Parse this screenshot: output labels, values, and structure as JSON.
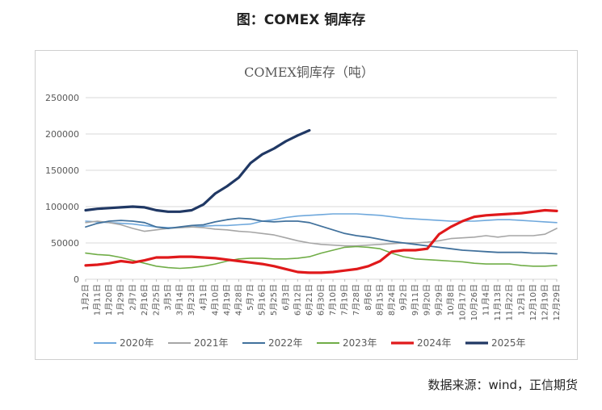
{
  "figure_title": "图：COMEX 铜库存",
  "source_note": "数据来源：wind，正信期货",
  "chart_data": {
    "type": "line",
    "title": "COMEX铜库存（吨）",
    "ylim": [
      0,
      250000
    ],
    "yticks": [
      0,
      50000,
      100000,
      150000,
      200000,
      250000
    ],
    "categories": [
      "1月2日",
      "1月11日",
      "1月20日",
      "1月29日",
      "2月7日",
      "2月16日",
      "2月25日",
      "3月5日",
      "3月14日",
      "3月23日",
      "4月1日",
      "4月10日",
      "4月19日",
      "4月28日",
      "5月7日",
      "5月16日",
      "5月25日",
      "6月3日",
      "6月12日",
      "6月21日",
      "6月30日",
      "7月10日",
      "7月19日",
      "7月28日",
      "8月6日",
      "8月15日",
      "8月24日",
      "9月2日",
      "9月11日",
      "9月20日",
      "9月29日",
      "10月8日",
      "10月17日",
      "10月26日",
      "11月4日",
      "11月13日",
      "11月22日",
      "12月1日",
      "12月10日",
      "12月19日",
      "12月29日"
    ],
    "legend_position": "bottom",
    "grid": true,
    "series": [
      {
        "name": "2020年",
        "color": "#6fa8dc",
        "width": 1.6,
        "values": [
          80000,
          79000,
          78000,
          77000,
          76000,
          74000,
          72000,
          71000,
          71000,
          72000,
          73000,
          74000,
          74000,
          75000,
          76000,
          80000,
          82000,
          85000,
          87000,
          88000,
          89000,
          90000,
          90000,
          90000,
          89000,
          88000,
          86000,
          84000,
          83000,
          82000,
          81000,
          80000,
          80000,
          80000,
          81000,
          82000,
          82000,
          81000,
          80000,
          79000,
          78000
        ]
      },
      {
        "name": "2021年",
        "color": "#a6a6a6",
        "width": 1.6,
        "values": [
          78000,
          80000,
          78000,
          75000,
          70000,
          66000,
          68000,
          70000,
          71000,
          72000,
          71000,
          69000,
          68000,
          66000,
          65000,
          63000,
          61000,
          57000,
          53000,
          50000,
          48000,
          47000,
          46000,
          46000,
          47000,
          48000,
          49000,
          50000,
          50000,
          51000,
          53000,
          56000,
          57000,
          58000,
          60000,
          58000,
          60000,
          60000,
          60000,
          62000,
          70000
        ]
      },
      {
        "name": "2022年",
        "color": "#41719c",
        "width": 1.8,
        "values": [
          72000,
          77000,
          80000,
          81000,
          80000,
          78000,
          72000,
          70000,
          72000,
          74000,
          75000,
          79000,
          82000,
          84000,
          83000,
          80000,
          79000,
          80000,
          80000,
          78000,
          73000,
          68000,
          63000,
          60000,
          58000,
          55000,
          52000,
          50000,
          48000,
          46000,
          44000,
          42000,
          40000,
          39000,
          38000,
          37000,
          37000,
          37000,
          36000,
          36000,
          35000
        ]
      },
      {
        "name": "2023年",
        "color": "#70ad47",
        "width": 1.6,
        "values": [
          36000,
          34000,
          33000,
          30000,
          26000,
          22000,
          18000,
          16000,
          15000,
          16000,
          18000,
          21000,
          25000,
          28000,
          29000,
          29000,
          28000,
          28000,
          29000,
          31000,
          36000,
          40000,
          44000,
          45000,
          44000,
          42000,
          36000,
          31000,
          28000,
          27000,
          26000,
          25000,
          24000,
          22000,
          21000,
          21000,
          21000,
          19000,
          18000,
          18000,
          19000
        ]
      },
      {
        "name": "2024年",
        "color": "#e0191b",
        "width": 3.2,
        "values": [
          19000,
          20000,
          22000,
          25000,
          23000,
          26000,
          30000,
          30000,
          31000,
          31000,
          30000,
          29000,
          27000,
          25000,
          23000,
          21000,
          18000,
          14000,
          10000,
          9000,
          9000,
          10000,
          12000,
          14000,
          18000,
          25000,
          38000,
          40000,
          40000,
          42000,
          62000,
          72000,
          80000,
          86000,
          88000,
          89000,
          90000,
          91000,
          93000,
          95000,
          94000
        ]
      },
      {
        "name": "2025年",
        "color": "#203864",
        "width": 3.2,
        "values": [
          95000,
          97000,
          98000,
          99000,
          100000,
          99000,
          95000,
          93000,
          93000,
          95000,
          103000,
          118000,
          128000,
          140000,
          160000,
          172000,
          180000,
          190000,
          198000,
          205000,
          null,
          null,
          null,
          null,
          null,
          null,
          null,
          null,
          null,
          null,
          null,
          null,
          null,
          null,
          null,
          null,
          null,
          null,
          null,
          null,
          null
        ]
      }
    ]
  }
}
